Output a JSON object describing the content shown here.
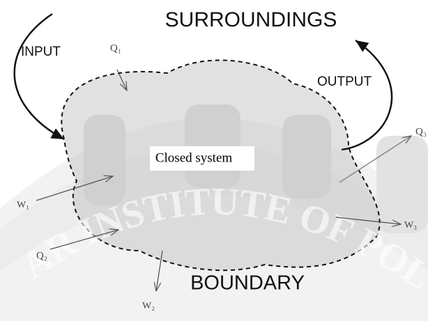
{
  "surroundings": "SURROUNDINGS",
  "input": "INPUT",
  "output": "OUTPUT",
  "system": "Closed system",
  "boundary": "BOUNDARY",
  "heat": [
    "Q₁",
    "Q₂",
    "Q₃"
  ],
  "work": [
    "W₁",
    "W₂",
    "W₃"
  ],
  "watermark": "AR INSTITUTE OF POLYTE"
}
